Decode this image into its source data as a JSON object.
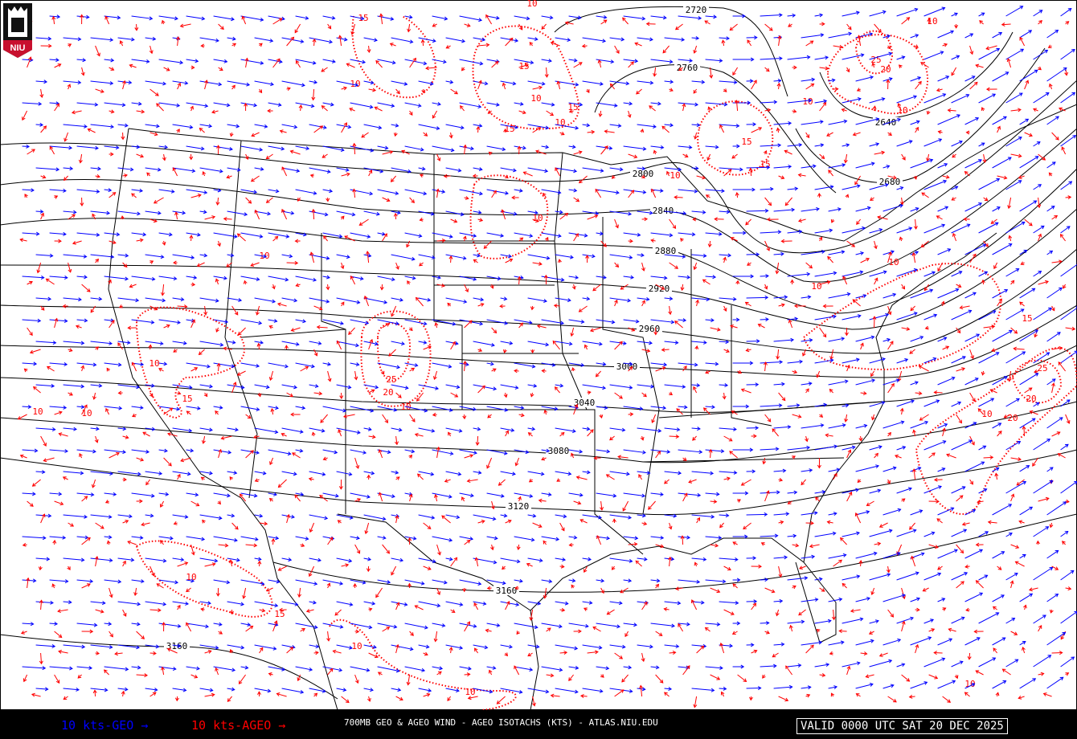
{
  "map": {
    "colors": {
      "geo": "#0000ff",
      "ageo": "#ff0000",
      "heights": "#000000",
      "background": "#ffffff"
    },
    "height_contour_labels": [
      "2720",
      "2760",
      "2640",
      "2680",
      "2800",
      "2840",
      "2880",
      "2920",
      "2960",
      "3000",
      "3040",
      "3080",
      "3120",
      "3160",
      "3160"
    ],
    "isotach_labels": [
      "15",
      "10",
      "15",
      "10",
      "10",
      "15",
      "15",
      "10",
      "10",
      "15",
      "25",
      "20",
      "10",
      "10",
      "15",
      "10",
      "10",
      "10",
      "10",
      "10",
      "25",
      "20",
      "10",
      "10",
      "15",
      "10",
      "10",
      "10",
      "25",
      "20",
      "20",
      "15",
      "10",
      "15",
      "10",
      "10",
      "10"
    ]
  },
  "logo": {
    "text": "NIU"
  },
  "footer": {
    "geo_legend": "10 kts-GEO →",
    "ageo_legend": "10 kts-AGEO →",
    "title": "700MB GEO & AGEO WIND - AGEO ISOTACHS (KTS) - ATLAS.NIU.EDU",
    "valid": "VALID 0000 UTC SAT 20 DEC 2025"
  }
}
